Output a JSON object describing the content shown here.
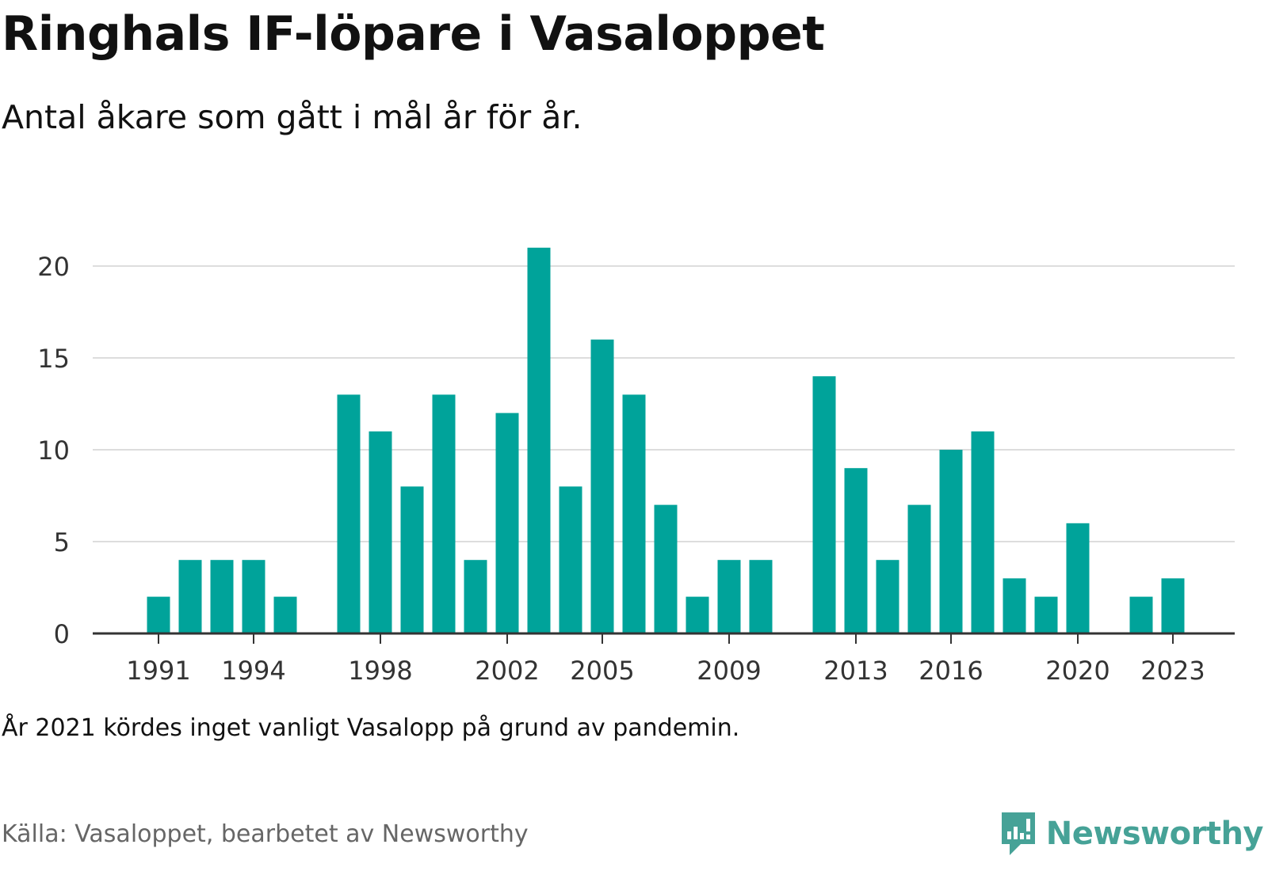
{
  "title": "Ringhals IF-löpare i Vasaloppet",
  "subtitle": "Antal åkare som gått i mål år för år.",
  "note": "År 2021 kördes inget vanligt Vasalopp på grund av pandemin.",
  "source": "Källa: Vasaloppet, bearbetet av Newsworthy",
  "brand": {
    "name": "Newsworthy",
    "icon": "newsworthy-logo-icon",
    "color": "#46a297"
  },
  "colors": {
    "bar": "#00a39a",
    "grid": "#dddddd",
    "axis": "#333333"
  },
  "chart_data": {
    "type": "bar",
    "x": [
      1991,
      1992,
      1993,
      1994,
      1995,
      1996,
      1997,
      1998,
      1999,
      2000,
      2001,
      2002,
      2003,
      2004,
      2005,
      2006,
      2007,
      2008,
      2009,
      2010,
      2011,
      2012,
      2013,
      2014,
      2015,
      2016,
      2017,
      2018,
      2019,
      2020,
      2021,
      2022,
      2023
    ],
    "values": [
      2,
      4,
      4,
      4,
      2,
      null,
      13,
      11,
      8,
      13,
      4,
      12,
      21,
      8,
      16,
      13,
      7,
      2,
      4,
      4,
      null,
      14,
      9,
      4,
      7,
      10,
      11,
      3,
      2,
      6,
      null,
      2,
      3
    ],
    "xticks": [
      1991,
      1994,
      1998,
      2002,
      2005,
      2009,
      2013,
      2016,
      2020,
      2023
    ],
    "yticks": [
      0,
      5,
      10,
      15,
      20
    ],
    "ylim": [
      0,
      21
    ],
    "xlabel": "",
    "ylabel": "",
    "grid": true,
    "legend": "none"
  }
}
